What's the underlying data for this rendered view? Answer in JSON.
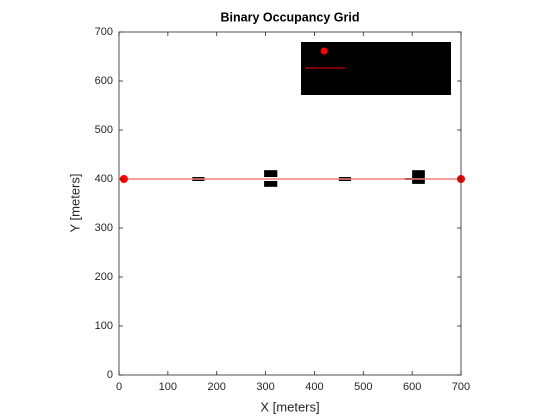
{
  "chart_data": {
    "type": "occupancy",
    "title": "Binary Occupancy Grid",
    "xlabel": "X [meters]",
    "ylabel": "Y [meters]",
    "xlim": [
      0,
      700
    ],
    "ylim": [
      0,
      700
    ],
    "xticks": [
      0,
      100,
      200,
      300,
      400,
      500,
      600,
      700
    ],
    "yticks": [
      0,
      100,
      200,
      300,
      400,
      500,
      600,
      700
    ],
    "obstacle_color": "#000000",
    "obstacles": [
      {
        "x": 150,
        "y": 396,
        "width": 25,
        "height": 8
      },
      {
        "x": 297,
        "y": 404,
        "width": 27,
        "height": 14
      },
      {
        "x": 297,
        "y": 384,
        "width": 27,
        "height": 12
      },
      {
        "x": 450,
        "y": 396,
        "width": 25,
        "height": 8
      },
      {
        "x": 585,
        "y": 398,
        "width": 15,
        "height": 4
      },
      {
        "x": 600,
        "y": 390,
        "width": 26,
        "height": 28
      }
    ],
    "path": {
      "x": [
        10,
        700
      ],
      "y": [
        400,
        400
      ],
      "line_color": "#f08080",
      "marker_color": "#ff0000"
    }
  }
}
